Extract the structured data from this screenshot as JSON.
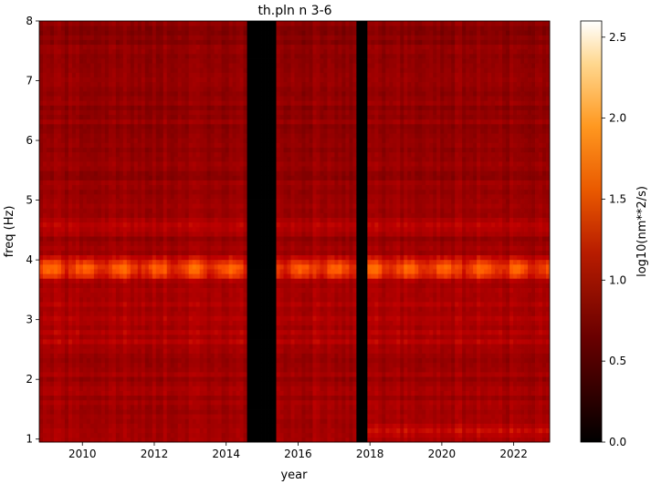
{
  "chart_data": {
    "type": "heatmap",
    "title": "th.pln n 3-6",
    "xlabel": "year",
    "ylabel": "freq (Hz)",
    "xlim": [
      2008.8,
      2023.0
    ],
    "ylim": [
      0.95,
      8.0
    ],
    "x_ticks": [
      2010,
      2012,
      2014,
      2016,
      2018,
      2020,
      2022
    ],
    "y_ticks": [
      1,
      2,
      3,
      4,
      5,
      6,
      7,
      8
    ],
    "colormap": "gist_heat",
    "colorbar": {
      "label": "log10(nm**2/s)",
      "range": [
        0.0,
        2.6
      ],
      "ticks": [
        "0.0",
        "0.5",
        "1.0",
        "1.5",
        "2.0",
        "2.5"
      ]
    },
    "data_gaps": [
      [
        2014.6,
        2015.4
      ],
      [
        2017.6,
        2017.95
      ]
    ],
    "bands": [
      {
        "freq": 3.85,
        "level": 1.55,
        "note": "strong band, seasonal modulation"
      },
      {
        "freq": 4.55,
        "level": 1.3
      },
      {
        "freq": 1.15,
        "level": 1.25,
        "from": 2017.95
      },
      {
        "freq": 1.5,
        "level": 1.15,
        "from": 2015.4
      }
    ],
    "background_level": 1.1
  }
}
